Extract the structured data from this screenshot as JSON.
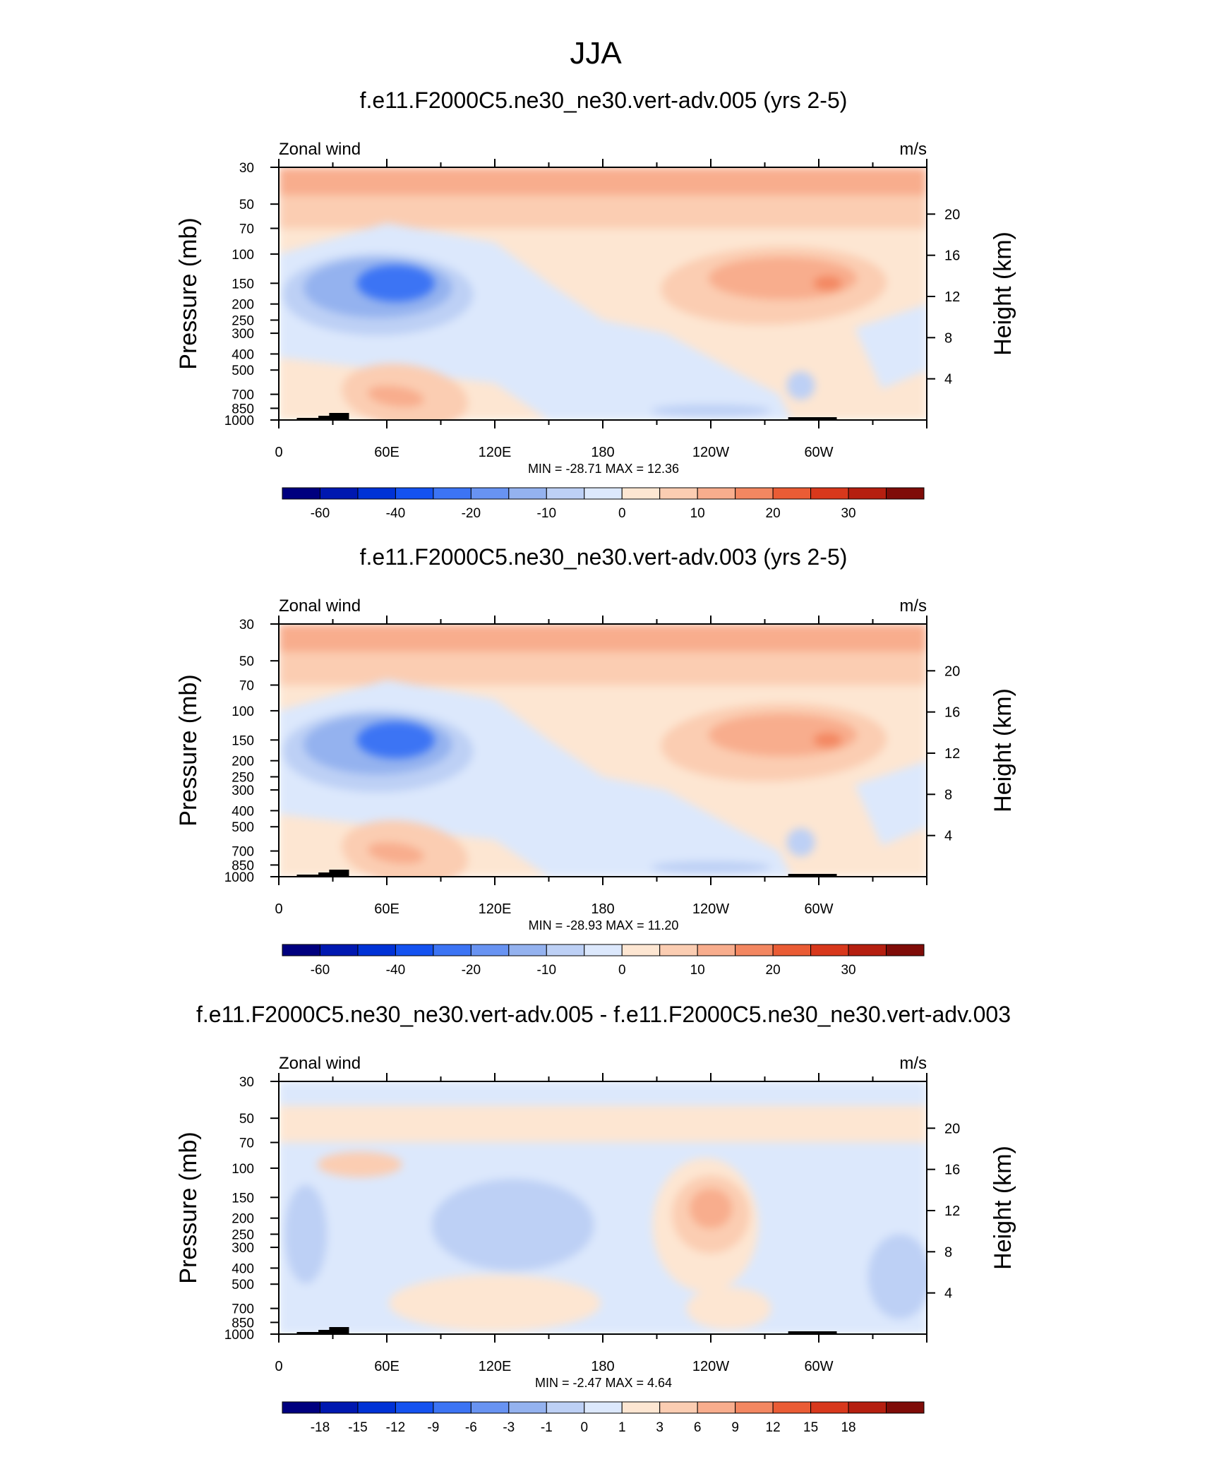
{
  "figure": {
    "title": "JJA"
  },
  "x_ticks": {
    "labels": [
      "0",
      "60E",
      "120E",
      "180",
      "120W",
      "60W"
    ],
    "lon_range": [
      0,
      360
    ]
  },
  "y_ticks": {
    "pressure_labels": [
      "30",
      "50",
      "70",
      "100",
      "150",
      "200",
      "250",
      "300",
      "400",
      "500",
      "700",
      "850",
      "1000"
    ],
    "pressure_values": [
      30,
      50,
      70,
      100,
      150,
      200,
      250,
      300,
      400,
      500,
      700,
      850,
      1000
    ],
    "height_labels": [
      "20",
      "16",
      "12",
      "8",
      "4"
    ],
    "height_values_km": [
      20,
      16,
      12,
      8,
      4
    ]
  },
  "colors": {
    "main": [
      "#00007f",
      "#0018b0",
      "#0032d6",
      "#1452f0",
      "#3c74f4",
      "#6893f2",
      "#94b2ef",
      "#bdd0f5",
      "#dce8fc",
      "#fde6d2",
      "#fbcdb2",
      "#f8ad8d",
      "#f38761",
      "#ea5c35",
      "#d8381c",
      "#b51f10",
      "#7f0c08"
    ],
    "diff": [
      "#00007f",
      "#0018b0",
      "#0032d6",
      "#1452f0",
      "#3c74f4",
      "#6893f2",
      "#94b2ef",
      "#bdd0f5",
      "#dce8fc",
      "#fde6d2",
      "#fbcdb2",
      "#f8ad8d",
      "#f38761",
      "#ea5c35",
      "#d8381c",
      "#b51f10",
      "#7f0c08"
    ]
  },
  "colorbars": {
    "main": {
      "labels": [
        "-60",
        "-40",
        "-20",
        "-10",
        "0",
        "10",
        "20",
        "30"
      ],
      "label_boxes": [
        1,
        3,
        5,
        7,
        9,
        11,
        13,
        15
      ]
    },
    "diff": {
      "labels": [
        "-18",
        "-15",
        "-12",
        "-9",
        "-6",
        "-3",
        "-1",
        "0",
        "1",
        "3",
        "6",
        "9",
        "12",
        "15",
        "18"
      ],
      "label_boxes": [
        1,
        2,
        3,
        4,
        5,
        6,
        7,
        8,
        9,
        10,
        11,
        12,
        13,
        14,
        15
      ]
    }
  },
  "panels": [
    {
      "title": "f.e11.F2000C5.ne30_ne30.vert-adv.005 (yrs 2-5)",
      "left_label": "Zonal wind",
      "right_label": "m/s",
      "y_axis_label": "Pressure (mb)",
      "y2_axis_label": "Height (km)",
      "min_max": "MIN = -28.71  MAX =  12.36",
      "colorbar": "main"
    },
    {
      "title": "f.e11.F2000C5.ne30_ne30.vert-adv.003 (yrs 2-5)",
      "left_label": "Zonal wind",
      "right_label": "m/s",
      "y_axis_label": "Pressure (mb)",
      "y2_axis_label": "Height (km)",
      "min_max": "MIN = -28.93  MAX =  11.20",
      "colorbar": "main"
    },
    {
      "title": "f.e11.F2000C5.ne30_ne30.vert-adv.005 - f.e11.F2000C5.ne30_ne30.vert-adv.003",
      "left_label": "Zonal wind",
      "right_label": "m/s",
      "y_axis_label": "Pressure (mb)",
      "y2_axis_label": "Height (km)",
      "min_max": "MIN = -2.47  MAX =  4.64",
      "colorbar": "diff"
    }
  ],
  "chart_data": [
    {
      "type": "heatmap",
      "title": "f.e11.F2000C5.ne30_ne30.vert-adv.005 (yrs 2-5)",
      "variable": "Zonal wind",
      "units": "m/s",
      "x": "longitude (0-360)",
      "y": "pressure (mb)",
      "ylim": [
        1000,
        30
      ],
      "min": -28.71,
      "max": 12.36,
      "features": [
        {
          "lon_range": [
            0,
            360
          ],
          "p_range": [
            30,
            60
          ],
          "value": 8
        },
        {
          "lon_range": [
            0,
            130
          ],
          "p_range": [
            100,
            350
          ],
          "value": -12
        },
        {
          "lon_range": [
            30,
            100
          ],
          "p_range": [
            120,
            220
          ],
          "value": -25
        },
        {
          "lon_range": [
            185,
            345
          ],
          "p_range": [
            90,
            250
          ],
          "value": 8
        },
        {
          "lon_range": [
            290,
            320
          ],
          "p_range": [
            130,
            170
          ],
          "value": 12
        },
        {
          "lon_range": [
            20,
            120
          ],
          "p_range": [
            400,
            900
          ],
          "value": 4
        }
      ]
    },
    {
      "type": "heatmap",
      "title": "f.e11.F2000C5.ne30_ne30.vert-adv.003 (yrs 2-5)",
      "variable": "Zonal wind",
      "units": "m/s",
      "x": "longitude (0-360)",
      "y": "pressure (mb)",
      "ylim": [
        1000,
        30
      ],
      "min": -28.93,
      "max": 11.2,
      "features": [
        {
          "lon_range": [
            0,
            360
          ],
          "p_range": [
            30,
            60
          ],
          "value": 8
        },
        {
          "lon_range": [
            0,
            130
          ],
          "p_range": [
            100,
            350
          ],
          "value": -12
        },
        {
          "lon_range": [
            30,
            100
          ],
          "p_range": [
            120,
            220
          ],
          "value": -25
        },
        {
          "lon_range": [
            190,
            345
          ],
          "p_range": [
            90,
            250
          ],
          "value": 7
        },
        {
          "lon_range": [
            295,
            315
          ],
          "p_range": [
            135,
            165
          ],
          "value": 11
        },
        {
          "lon_range": [
            20,
            120
          ],
          "p_range": [
            400,
            900
          ],
          "value": 4
        }
      ]
    },
    {
      "type": "heatmap",
      "title": "f.e11.F2000C5.ne30_ne30.vert-adv.005 - f.e11.F2000C5.ne30_ne30.vert-adv.003",
      "variable": "Zonal wind",
      "units": "m/s",
      "x": "longitude (0-360)",
      "y": "pressure (mb)",
      "ylim": [
        1000,
        30
      ],
      "min": -2.47,
      "max": 4.64,
      "features": [
        {
          "lon_range": [
            0,
            360
          ],
          "p_range": [
            30,
            45
          ],
          "value": -0.5
        },
        {
          "lon_range": [
            200,
            270
          ],
          "p_range": [
            120,
            350
          ],
          "value": 2
        },
        {
          "lon_range": [
            230,
            260
          ],
          "p_range": [
            140,
            220
          ],
          "value": 4
        },
        {
          "lon_range": [
            95,
            175
          ],
          "p_range": [
            130,
            350
          ],
          "value": -2
        },
        {
          "lon_range": [
            60,
            180
          ],
          "p_range": [
            400,
            900
          ],
          "value": 0.5
        }
      ]
    }
  ]
}
